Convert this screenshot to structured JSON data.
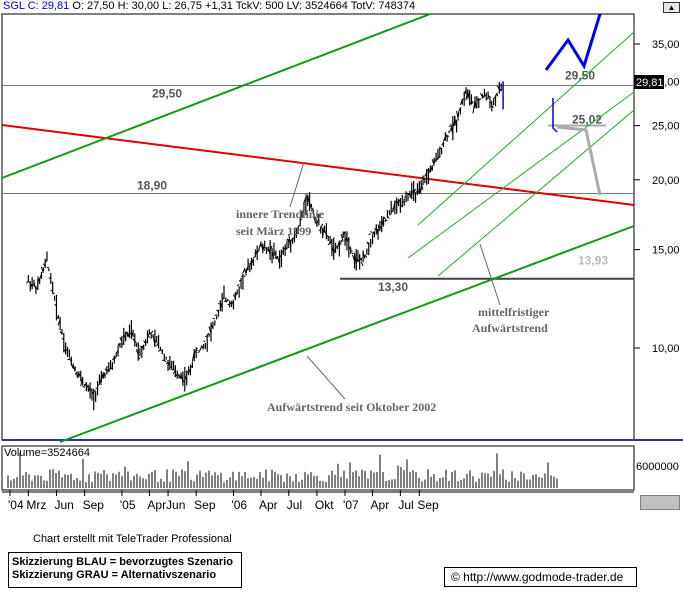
{
  "header": {
    "symbol": "SGL C:",
    "close": "29,81",
    "rest": "O: 27,50 H: 30,00 L: 26,75 +1,31 TckV: 500 LV: 3524664 TotV: 748374"
  },
  "price_tag": "29,81",
  "volume_label": "Volume=3524664",
  "volume_scale_label": "6000000",
  "credit": "Chart erstellt mit TeleTrader Professional",
  "legend": {
    "line1": "Skizzierung BLAU = bevorzugtes Szenario",
    "line2": "Skizzierung GRAU = Alternativszenario"
  },
  "url_box": "© http://www.godmode-trader.de",
  "colors": {
    "price_bars": "#000000",
    "resistance_line": "#dd0000",
    "long_trend": "#119911",
    "mid_channel": "#22aa22",
    "blue_scenario": "#0000ee",
    "grey_scenario": "#aaaaaa",
    "level_line": "#777777"
  },
  "chart_data": {
    "type": "line",
    "series": [
      {
        "values": [
          13.2,
          12.8,
          14.4,
          11.8,
          10.0,
          9.2,
          8.6,
          8.2,
          8.9,
          9.3,
          10.3,
          10.7,
          9.8,
          10.6,
          10.2,
          9.4,
          9.0,
          8.8,
          9.8,
          10.2,
          11.1,
          12.3,
          12.0,
          13.3,
          14.2,
          15.2,
          15.0,
          14.4,
          15.4,
          16.2,
          18.7,
          16.8,
          16.0,
          14.8,
          16.0,
          14.5,
          14.3,
          15.9,
          16.5,
          17.6,
          18.2,
          18.9,
          19.0,
          20.5,
          22.0,
          24.0,
          25.5,
          28.8,
          27.0,
          28.5,
          27.3,
          29.81
        ],
        "x": [
          "2004-03-01",
          "2004-04-01",
          "2004-05-01",
          "2004-06-01",
          "2004-07-01",
          "2004-08-01",
          "2004-09-01",
          "2004-10-01",
          "2004-11-01",
          "2004-12-01",
          "2005-01-01",
          "2005-02-01",
          "2005-03-01",
          "2005-04-01",
          "2005-05-01",
          "2005-06-01",
          "2005-07-01",
          "2005-08-01",
          "2005-09-01",
          "2005-10-01",
          "2005-11-01",
          "2005-12-01",
          "2006-01-01",
          "2006-02-01",
          "2006-03-01",
          "2006-04-01",
          "2006-05-01",
          "2006-06-01",
          "2006-07-01",
          "2006-08-01",
          "2006-09-01",
          "2006-10-01",
          "2006-11-01",
          "2006-12-01",
          "2007-01-01",
          "2007-02-01",
          "2007-03-01",
          "2007-04-01",
          "2007-05-01",
          "2007-06-01",
          "2007-07-01",
          "2007-08-01",
          "2007-09-01",
          "2007-10-01",
          "2007-11-01",
          "2007-12-01",
          "2008-01-01",
          "2008-02-01",
          "2008-03-01",
          "2008-04-01",
          "2008-05-01",
          "2008-06-01"
        ]
      }
    ],
    "volume": {
      "label": "Volume=3524664",
      "ymax": 6000000
    },
    "yaxis": {
      "scale": "log",
      "ticks": [
        "35,00",
        "30,00",
        "25,00",
        "20,00",
        "15,00",
        "10,00"
      ]
    },
    "xaxis": {
      "ticks": [
        "'04",
        "Mrz",
        "Jun",
        "Sep",
        "'05",
        "Apr",
        "Jun",
        "Sep",
        "'06",
        "Apr",
        "Jul",
        "Okt",
        "'07",
        "Apr",
        "Jul",
        "Sep"
      ]
    },
    "levels": [
      {
        "label": "29,50",
        "value": 29.5
      },
      {
        "label": "18,90",
        "value": 18.9
      },
      {
        "label": "13,30",
        "value": 13.3
      },
      {
        "label": "25,02",
        "value": 25.02
      },
      {
        "label": "13,93",
        "value": 13.93
      }
    ],
    "annotations": [
      {
        "line1": "innere Trendlinie",
        "line2": "seit März 1999"
      },
      {
        "line1": "mittelfristiger",
        "line2": "Aufwärtstrend"
      },
      {
        "line1": "Aufwärtstrend seit Oktober 2002",
        "line2": ""
      }
    ],
    "grid": false
  }
}
